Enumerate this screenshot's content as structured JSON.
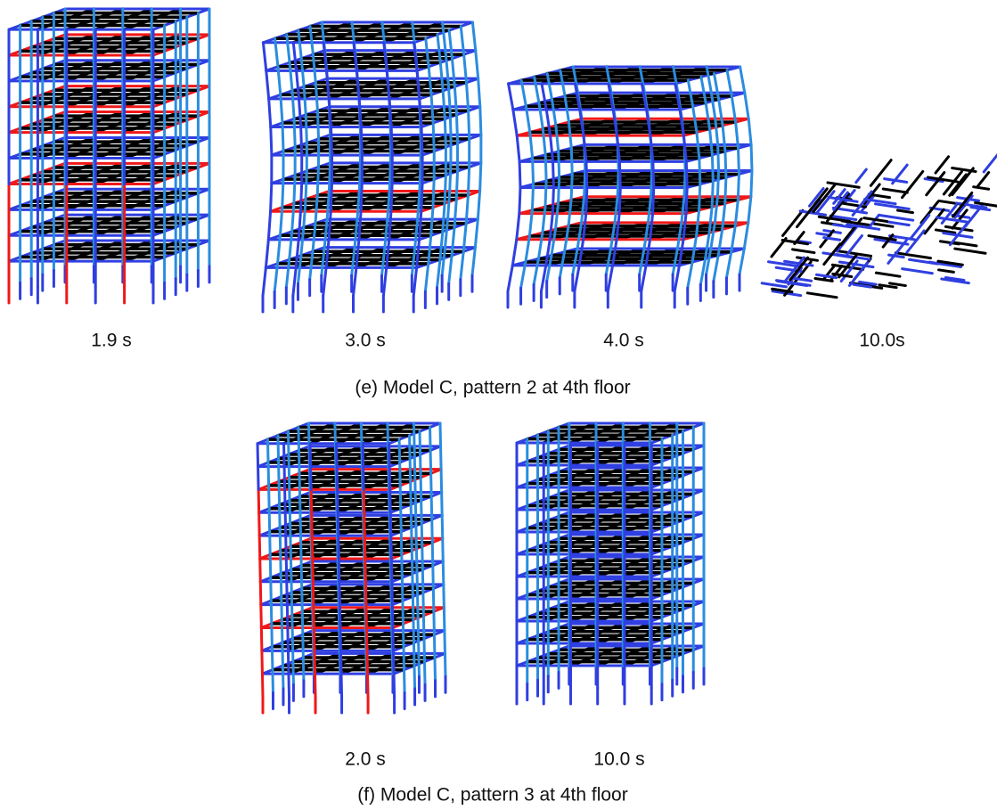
{
  "panels": [
    {
      "frames": [
        {
          "label": "1.9 s"
        },
        {
          "label": "3.0 s"
        },
        {
          "label": "4.0 s"
        },
        {
          "label": "10.0s"
        }
      ],
      "caption": "(e) Model C, pattern 2 at 4th floor"
    },
    {
      "frames": [
        {
          "label": "2.0 s"
        },
        {
          "label": "10.0 s"
        }
      ],
      "caption": "(f) Model C, pattern 3 at 4th floor"
    }
  ]
}
